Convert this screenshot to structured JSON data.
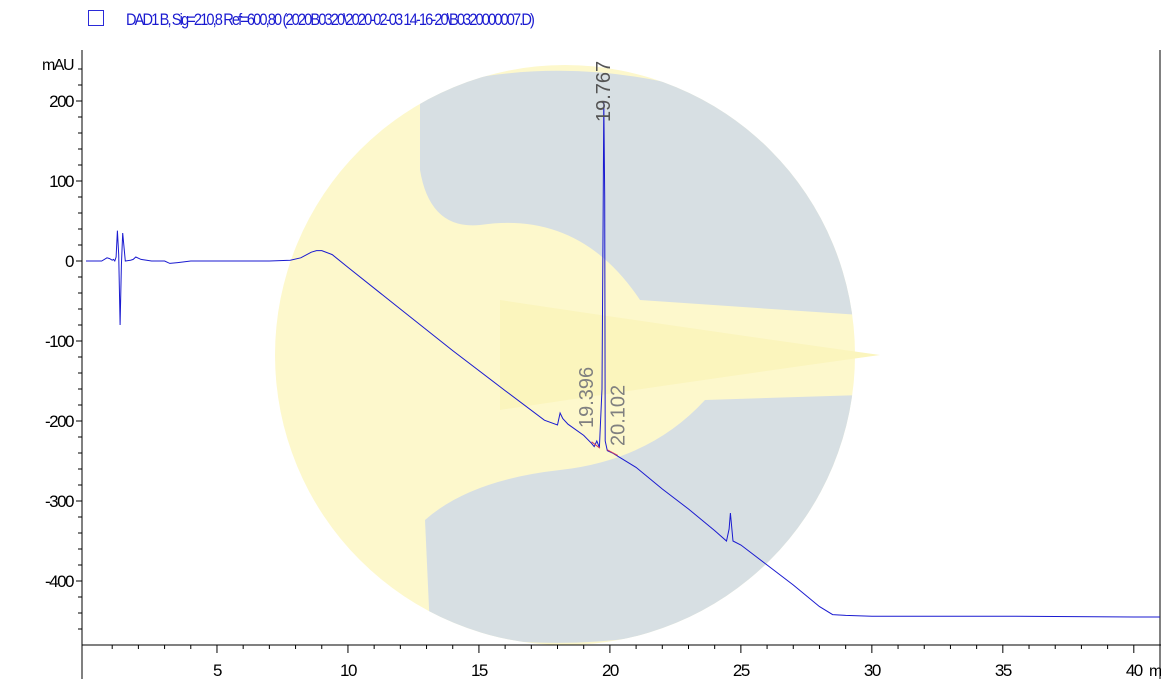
{
  "legend": {
    "label": "DAD1 B, Sig=210,8 Ref=600,80 (2020B0320\\2020-02-03 14-16-20\\B0320000007.D)",
    "color": "#1a1ad0"
  },
  "chart_data": {
    "type": "line",
    "title": "",
    "xlabel": "min",
    "ylabel": "mAU",
    "xlim": [
      0,
      41
    ],
    "ylim": [
      -470,
      250
    ],
    "x_ticks": [
      5,
      10,
      15,
      20,
      25,
      30,
      35,
      40
    ],
    "y_ticks": [
      200,
      100,
      0,
      -100,
      -200,
      -300,
      -400
    ],
    "x_tick_labels": [
      "5",
      "10",
      "15",
      "20",
      "25",
      "30",
      "35",
      "40"
    ],
    "y_tick_labels": [
      "200",
      "100",
      "0",
      "-100",
      "-200",
      "-300",
      "-400"
    ],
    "grid": false,
    "watermark": true,
    "series": [
      {
        "color": "#1a1ad0",
        "x": [
          0,
          0.6,
          0.8,
          0.9,
          1.0,
          1.05,
          1.1,
          1.15,
          1.2,
          1.25,
          1.3,
          1.35,
          1.4,
          1.5,
          1.7,
          1.8,
          1.9,
          2.1,
          2.5,
          3.0,
          3.2,
          3.5,
          4.0,
          5.0,
          6.0,
          7.0,
          7.8,
          8.2,
          8.6,
          8.8,
          9.0,
          9.4,
          10.0,
          12.0,
          14.0,
          16.0,
          17.5,
          18.0,
          18.1,
          18.2,
          18.4,
          19.0,
          19.3,
          19.4,
          19.5,
          19.6,
          19.7,
          19.74,
          19.767,
          19.8,
          19.82,
          19.9,
          20.1,
          20.2,
          21.0,
          22.0,
          23.0,
          24.0,
          24.45,
          24.55,
          24.6,
          24.7,
          25.0,
          26.0,
          27.0,
          28.0,
          28.5,
          29.0,
          30.0,
          35.0,
          40.0,
          41.0
        ],
        "y": [
          0,
          0,
          4,
          3,
          1,
          2,
          0,
          5,
          38,
          8,
          -80,
          -5,
          35,
          0,
          1,
          2,
          5,
          2,
          0,
          0,
          -3,
          -2,
          0,
          0,
          0,
          0,
          1,
          4,
          11,
          13,
          13,
          8,
          -8,
          -60,
          -112,
          -162,
          -199,
          -205,
          -190,
          -197,
          -204,
          -218,
          -228,
          -232,
          -225,
          -233,
          -160,
          50,
          200,
          80,
          -225,
          -237,
          -240,
          -242,
          -258,
          -285,
          -310,
          -337,
          -350,
          -335,
          -315,
          -350,
          -355,
          -380,
          -405,
          -432,
          -442,
          -443,
          -444,
          -444,
          -445,
          -445
        ]
      }
    ],
    "annotations": [
      {
        "label": "19.767",
        "x": 19.767,
        "y": 200
      },
      {
        "label": "19.396",
        "x": 19.396,
        "y": -228
      },
      {
        "label": "20.102",
        "x": 20.102,
        "y": -240
      }
    ]
  }
}
